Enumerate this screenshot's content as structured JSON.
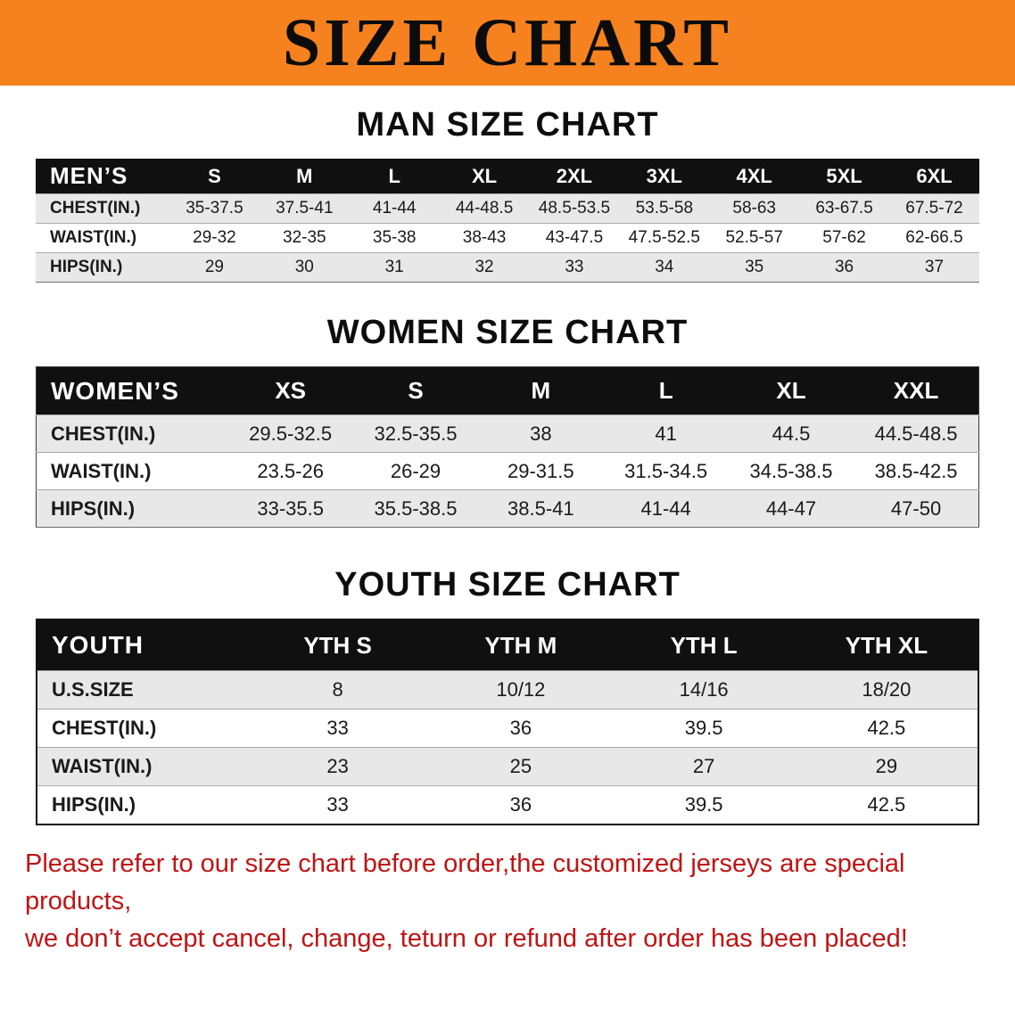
{
  "banner": {
    "title": "SIZE CHART",
    "bg_color": "#f6821f",
    "text_color": "#0c0c0c"
  },
  "sections": [
    {
      "heading": "MAN SIZE CHART",
      "table": {
        "group_label": "MEN’S",
        "columns": [
          "S",
          "M",
          "L",
          "XL",
          "2XL",
          "3XL",
          "4XL",
          "5XL",
          "6XL"
        ],
        "rows": [
          {
            "label": "CHEST(IN.)",
            "values": [
              "35-37.5",
              "37.5-41",
              "41-44",
              "44-48.5",
              "48.5-53.5",
              "53.5-58",
              "58-63",
              "63-67.5",
              "67.5-72"
            ]
          },
          {
            "label": "WAIST(IN.)",
            "values": [
              "29-32",
              "32-35",
              "35-38",
              "38-43",
              "43-47.5",
              "47.5-52.5",
              "52.5-57",
              "57-62",
              "62-66.5"
            ]
          },
          {
            "label": "HIPS(IN.)",
            "values": [
              "29",
              "30",
              "31",
              "32",
              "33",
              "34",
              "35",
              "36",
              "37"
            ]
          }
        ]
      }
    },
    {
      "heading": "WOMEN SIZE CHART",
      "table": {
        "group_label": "WOMEN’S",
        "columns": [
          "XS",
          "S",
          "M",
          "L",
          "XL",
          "XXL"
        ],
        "rows": [
          {
            "label": "CHEST(IN.)",
            "values": [
              "29.5-32.5",
              "32.5-35.5",
              "38",
              "41",
              "44.5",
              "44.5-48.5"
            ]
          },
          {
            "label": "WAIST(IN.)",
            "values": [
              "23.5-26",
              "26-29",
              "29-31.5",
              "31.5-34.5",
              "34.5-38.5",
              "38.5-42.5"
            ]
          },
          {
            "label": "HIPS(IN.)",
            "values": [
              "33-35.5",
              "35.5-38.5",
              "38.5-41",
              "41-44",
              "44-47",
              "47-50"
            ]
          }
        ]
      }
    },
    {
      "heading": "YOUTH SIZE CHART",
      "table": {
        "group_label": "YOUTH",
        "columns": [
          "YTH S",
          "YTH M",
          "YTH L",
          "YTH XL"
        ],
        "rows": [
          {
            "label": "U.S.SIZE",
            "values": [
              "8",
              "10/12",
              "14/16",
              "18/20"
            ]
          },
          {
            "label": "CHEST(IN.)",
            "values": [
              "33",
              "36",
              "39.5",
              "42.5"
            ]
          },
          {
            "label": "WAIST(IN.)",
            "values": [
              "23",
              "25",
              "27",
              "29"
            ]
          },
          {
            "label": "HIPS(IN.)",
            "values": [
              "33",
              "36",
              "39.5",
              "42.5"
            ]
          }
        ]
      }
    }
  ],
  "footer": {
    "text_color": "#c11313",
    "lines": [
      "Please refer to our size chart before order,the customized jerseys are special products,",
      "we don’t accept cancel, change, teturn or refund after order has been placed!"
    ]
  }
}
